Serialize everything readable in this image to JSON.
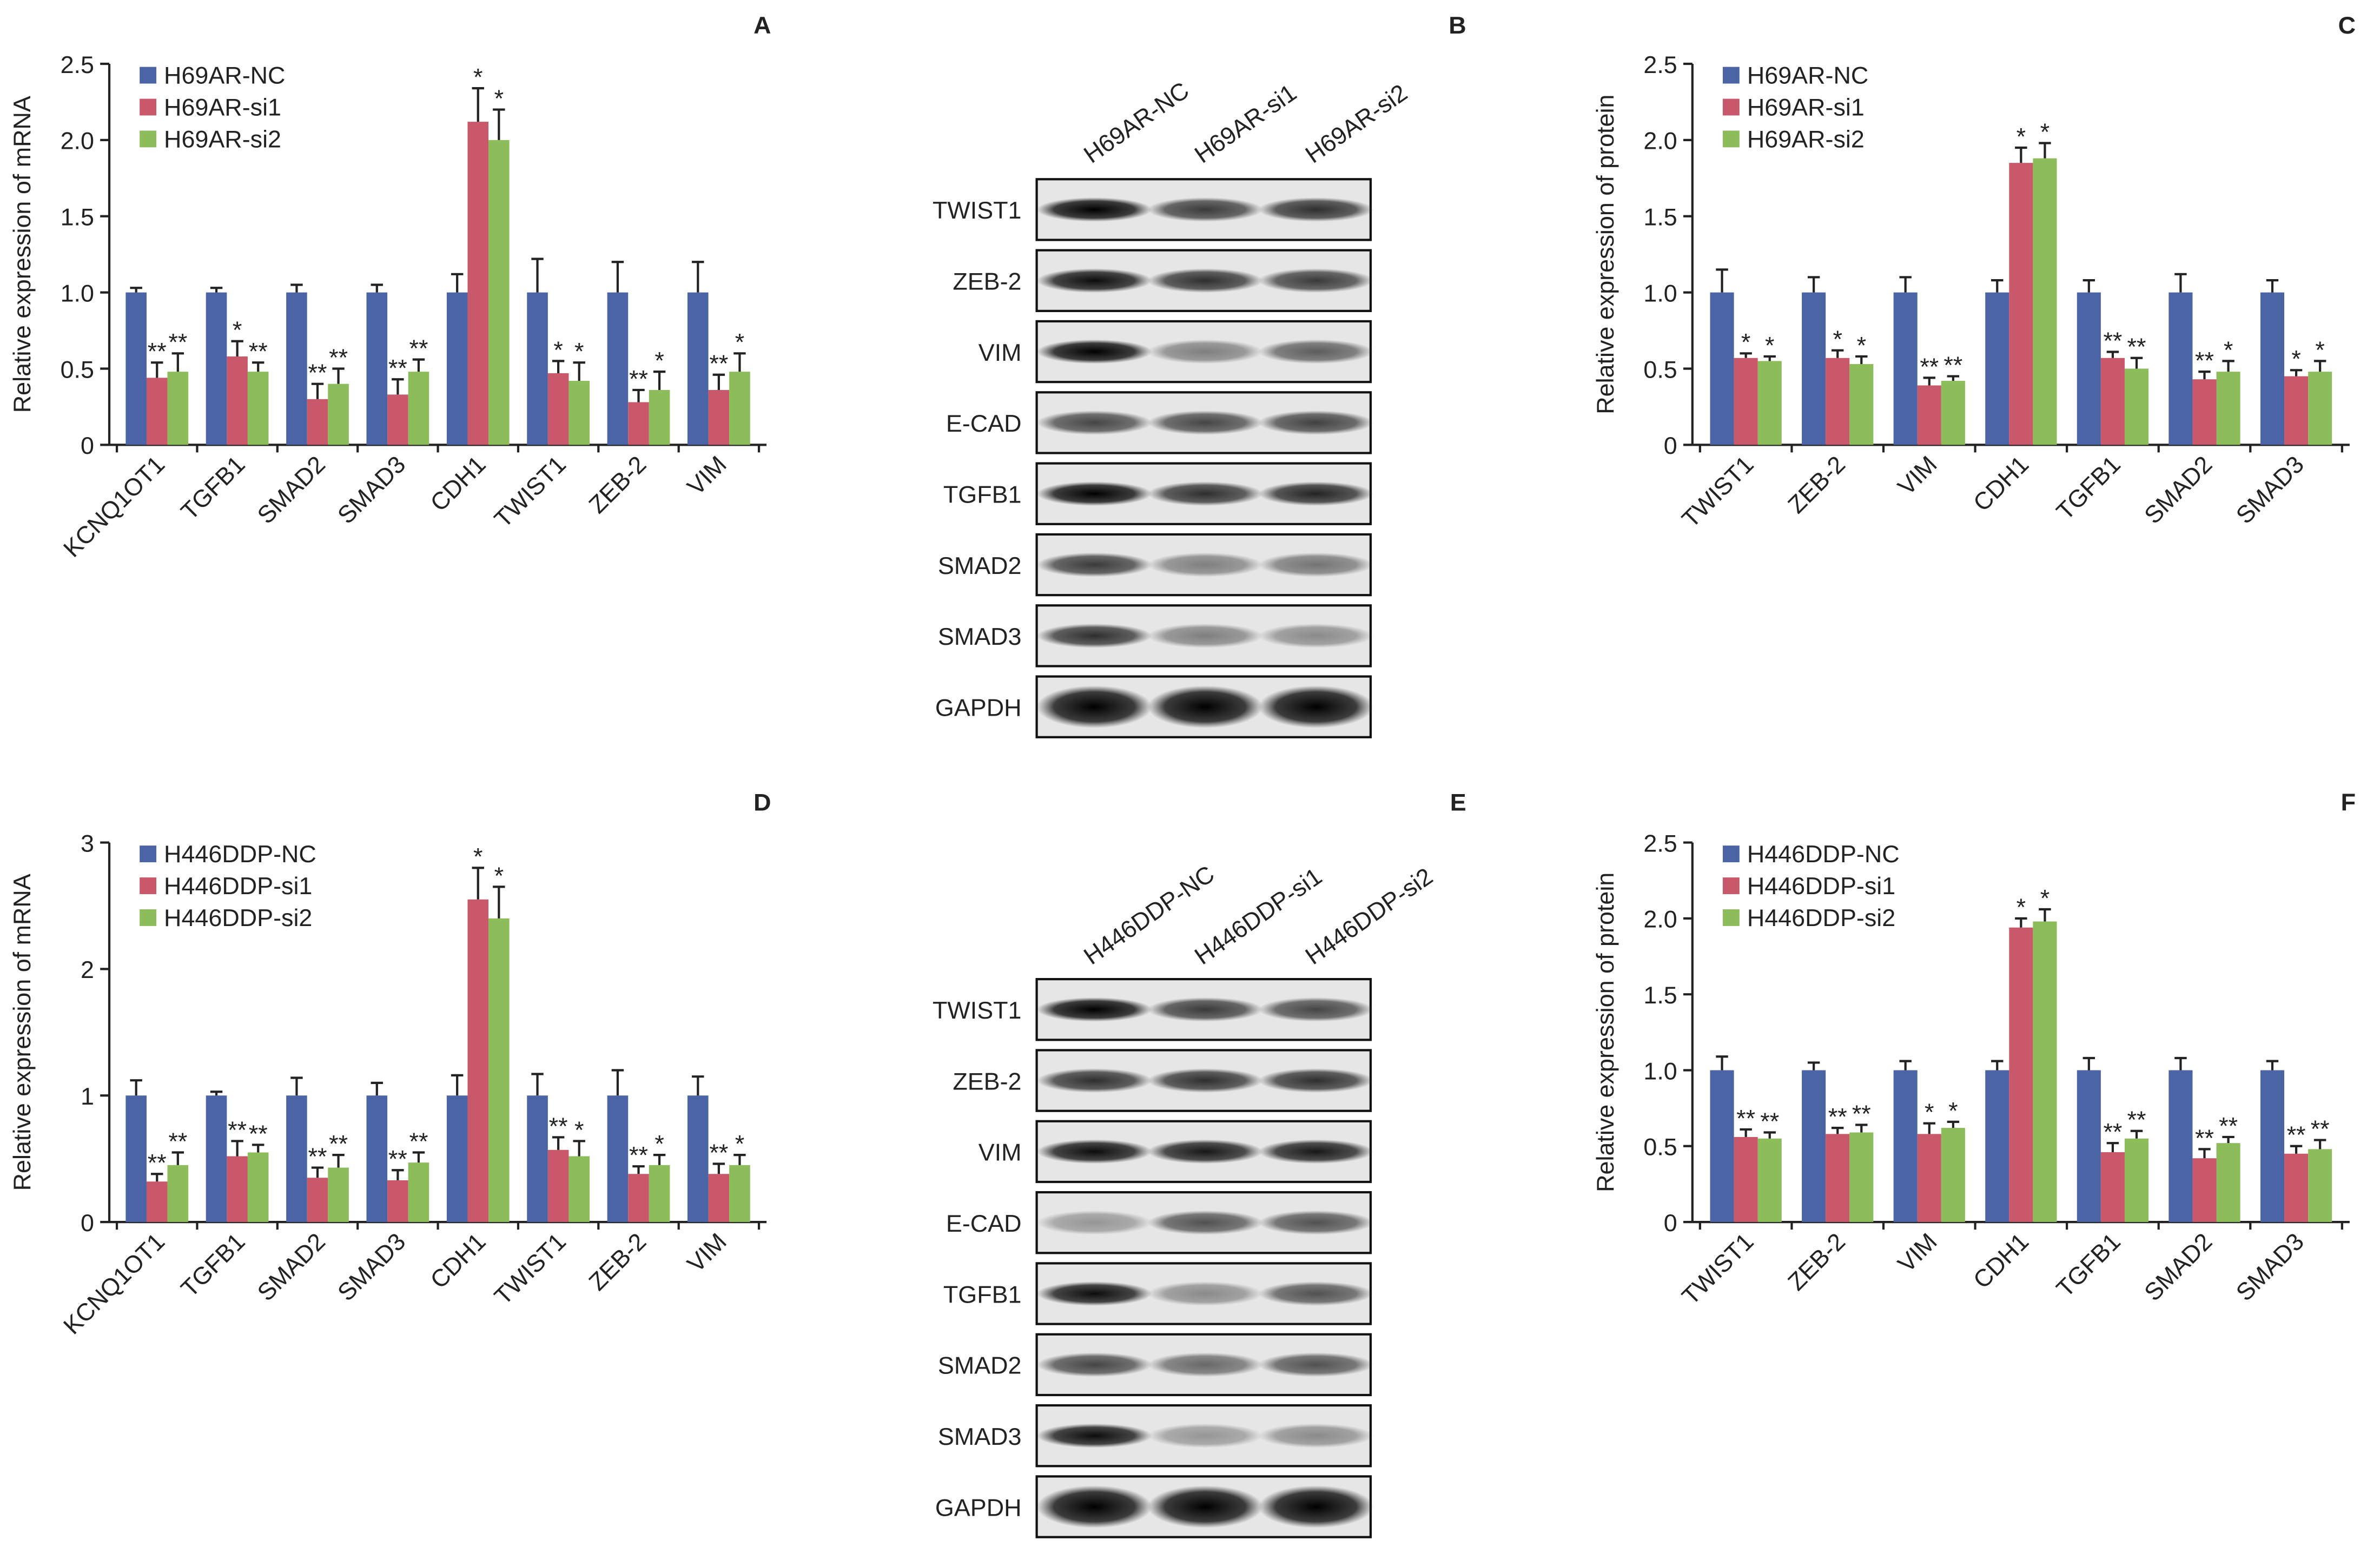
{
  "chart_data": [
    {
      "type": "bar",
      "panel": "A",
      "y_label": "Relative expression of mRNA",
      "categories": [
        "KCNQ1OT1",
        "TGFB1",
        "SMAD2",
        "SMAD3",
        "CDH1",
        "TWIST1",
        "ZEB-2",
        "VIM"
      ],
      "ylim": [
        0,
        2.5
      ],
      "yticks": [
        0,
        0.5,
        {
          "value": 1,
          "label": "1.0"
        },
        1.5,
        {
          "value": 2,
          "label": "2.0"
        },
        2.5
      ],
      "series": [
        {
          "name": "H69AR-NC",
          "color": "#4a64a6",
          "values": [
            1,
            1,
            1,
            1,
            1,
            1,
            1,
            1
          ],
          "errors": [
            0.03,
            0.03,
            0.05,
            0.05,
            0.12,
            0.22,
            0.2,
            0.2
          ]
        },
        {
          "name": "H69AR-si1",
          "color": "#c9596a",
          "values": [
            0.44,
            0.58,
            0.3,
            0.33,
            2.12,
            0.47,
            0.28,
            0.36
          ],
          "errors": [
            0.1,
            0.1,
            0.1,
            0.1,
            0.22,
            0.08,
            0.08,
            0.1
          ],
          "annotations": [
            "**",
            "*",
            "**",
            "**",
            "*",
            "*",
            "**",
            "**"
          ]
        },
        {
          "name": "H69AR-si2",
          "color": "#8cbd5a",
          "values": [
            0.48,
            0.48,
            0.4,
            0.48,
            2.0,
            0.42,
            0.36,
            0.48
          ],
          "errors": [
            0.12,
            0.06,
            0.1,
            0.08,
            0.2,
            0.12,
            0.12,
            0.12
          ],
          "annotations": [
            "**",
            "**",
            "**",
            "**",
            "*",
            "*",
            "*",
            "*"
          ]
        }
      ]
    },
    {
      "type": "bar",
      "panel": "C",
      "y_label": "Relative expression of protein",
      "categories": [
        "TWIST1",
        "ZEB-2",
        "VIM",
        "CDH1",
        "TGFB1",
        "SMAD2",
        "SMAD3"
      ],
      "ylim": [
        0,
        2.5
      ],
      "yticks": [
        0,
        0.5,
        {
          "value": 1,
          "label": "1.0"
        },
        1.5,
        {
          "value": 2,
          "label": "2.0"
        },
        2.5
      ],
      "series": [
        {
          "name": "H69AR-NC",
          "color": "#4a64a6",
          "values": [
            1,
            1,
            1,
            1,
            1,
            1,
            1
          ],
          "errors": [
            0.15,
            0.1,
            0.1,
            0.08,
            0.08,
            0.12,
            0.08
          ]
        },
        {
          "name": "H69AR-si1",
          "color": "#c9596a",
          "values": [
            0.57,
            0.57,
            0.39,
            1.85,
            0.57,
            0.43,
            0.45
          ],
          "errors": [
            0.03,
            0.05,
            0.05,
            0.1,
            0.04,
            0.05,
            0.04
          ],
          "annotations": [
            "*",
            "*",
            "**",
            "*",
            "**",
            "**",
            "*"
          ]
        },
        {
          "name": "H69AR-si2",
          "color": "#8cbd5a",
          "values": [
            0.55,
            0.53,
            0.42,
            1.88,
            0.5,
            0.48,
            0.48
          ],
          "errors": [
            0.03,
            0.05,
            0.03,
            0.1,
            0.07,
            0.07,
            0.07
          ],
          "annotations": [
            "*",
            "*",
            "**",
            "*",
            "**",
            "*",
            "*"
          ]
        }
      ]
    },
    {
      "type": "bar",
      "panel": "D",
      "y_label": "Relative expression of mRNA",
      "categories": [
        "KCNQ1OT1",
        "TGFB1",
        "SMAD2",
        "SMAD3",
        "CDH1",
        "TWIST1",
        "ZEB-2",
        "VIM"
      ],
      "ylim": [
        0,
        3
      ],
      "yticks": [
        0,
        1,
        2,
        3
      ],
      "series": [
        {
          "name": "H446DDP-NC",
          "color": "#4a64a6",
          "values": [
            1,
            1,
            1,
            1,
            1,
            1,
            1,
            1
          ],
          "errors": [
            0.12,
            0.03,
            0.14,
            0.1,
            0.16,
            0.17,
            0.2,
            0.15
          ]
        },
        {
          "name": "H446DDP-si1",
          "color": "#c9596a",
          "values": [
            0.32,
            0.52,
            0.35,
            0.33,
            2.55,
            0.57,
            0.38,
            0.38
          ],
          "errors": [
            0.06,
            0.12,
            0.08,
            0.08,
            0.25,
            0.1,
            0.06,
            0.08
          ],
          "annotations": [
            "**",
            "**",
            "**",
            "**",
            "*",
            "**",
            "**",
            "**"
          ]
        },
        {
          "name": "H446DDP-si2",
          "color": "#8cbd5a",
          "values": [
            0.45,
            0.55,
            0.43,
            0.47,
            2.4,
            0.52,
            0.45,
            0.45
          ],
          "errors": [
            0.1,
            0.06,
            0.1,
            0.08,
            0.25,
            0.12,
            0.08,
            0.08
          ],
          "annotations": [
            "**",
            "**",
            "**",
            "**",
            "*",
            "*",
            "*",
            "*"
          ]
        }
      ]
    },
    {
      "type": "bar",
      "panel": "F",
      "y_label": "Relative expression of protein",
      "categories": [
        "TWIST1",
        "ZEB-2",
        "VIM",
        "CDH1",
        "TGFB1",
        "SMAD2",
        "SMAD3"
      ],
      "ylim": [
        0,
        2.5
      ],
      "yticks": [
        0,
        0.5,
        {
          "value": 1,
          "label": "1.0"
        },
        1.5,
        {
          "value": 2,
          "label": "2.0"
        },
        2.5
      ],
      "series": [
        {
          "name": "H446DDP-NC",
          "color": "#4a64a6",
          "values": [
            1,
            1,
            1,
            1,
            1,
            1,
            1
          ],
          "errors": [
            0.09,
            0.05,
            0.06,
            0.06,
            0.08,
            0.08,
            0.06
          ]
        },
        {
          "name": "H446DDP-si1",
          "color": "#c9596a",
          "values": [
            0.56,
            0.58,
            0.58,
            1.94,
            0.46,
            0.42,
            0.45
          ],
          "errors": [
            0.05,
            0.04,
            0.07,
            0.06,
            0.06,
            0.06,
            0.05
          ],
          "annotations": [
            "**",
            "**",
            "*",
            "*",
            "**",
            "**",
            "**"
          ]
        },
        {
          "name": "H446DDP-si2",
          "color": "#8cbd5a",
          "values": [
            0.55,
            0.59,
            0.62,
            1.98,
            0.55,
            0.52,
            0.48
          ],
          "errors": [
            0.04,
            0.05,
            0.04,
            0.08,
            0.05,
            0.04,
            0.06
          ],
          "annotations": [
            "**",
            "**",
            "*",
            "*",
            "**",
            "**",
            "**"
          ]
        }
      ]
    }
  ],
  "blots": [
    {
      "panel": "B",
      "lanes": [
        "H69AR-NC",
        "H69AR-si1",
        "H69AR-si2"
      ],
      "rows": [
        "TWIST1",
        "ZEB-2",
        "VIM",
        "E-CAD",
        "TGFB1",
        "SMAD2",
        "SMAD3",
        "GAPDH"
      ]
    },
    {
      "panel": "E",
      "lanes": [
        "H446DDP-NC",
        "H446DDP-si1",
        "H446DDP-si2"
      ],
      "rows": [
        "TWIST1",
        "ZEB-2",
        "VIM",
        "E-CAD",
        "TGFB1",
        "SMAD2",
        "SMAD3",
        "GAPDH"
      ]
    }
  ]
}
